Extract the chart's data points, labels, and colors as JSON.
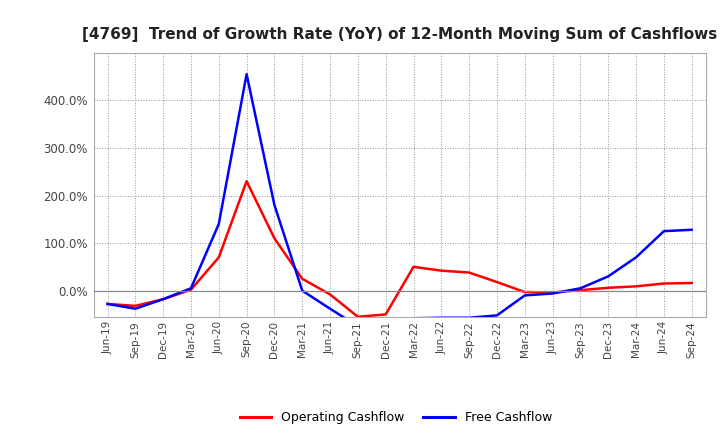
{
  "title": "[4769]  Trend of Growth Rate (YoY) of 12-Month Moving Sum of Cashflows",
  "title_fontsize": 11,
  "background_color": "#ffffff",
  "plot_bg_color": "#ffffff",
  "grid_color": "#999999",
  "x_labels": [
    "Jun-19",
    "Sep-19",
    "Dec-19",
    "Mar-20",
    "Jun-20",
    "Sep-20",
    "Dec-20",
    "Mar-21",
    "Jun-21",
    "Sep-21",
    "Dec-21",
    "Mar-22",
    "Jun-22",
    "Sep-22",
    "Dec-22",
    "Mar-23",
    "Jun-23",
    "Sep-23",
    "Dec-23",
    "Mar-24",
    "Jun-24",
    "Sep-24"
  ],
  "operating_cashflow": [
    -0.28,
    -0.32,
    -0.18,
    0.02,
    0.7,
    2.3,
    1.1,
    0.25,
    -0.08,
    -0.55,
    -0.5,
    0.5,
    0.42,
    0.38,
    0.18,
    -0.03,
    -0.04,
    0.01,
    0.06,
    0.09,
    0.15,
    0.16
  ],
  "free_cashflow": [
    -0.28,
    -0.38,
    -0.18,
    0.05,
    1.4,
    4.55,
    1.8,
    0.0,
    -0.38,
    -0.75,
    -0.62,
    -0.58,
    -0.57,
    -0.57,
    -0.52,
    -0.1,
    -0.06,
    0.05,
    0.3,
    0.7,
    1.25,
    1.28
  ],
  "operating_color": "#ff0000",
  "free_color": "#0000ff",
  "line_width": 1.8,
  "ylim_min": -0.55,
  "ylim_max": 5.0,
  "legend_labels": [
    "Operating Cashflow",
    "Free Cashflow"
  ],
  "yticks": [
    0.0,
    1.0,
    2.0,
    3.0,
    4.0
  ],
  "ytick_labels": [
    "0.0%",
    "100.0%",
    "200.0%",
    "300.0%",
    "400.0%"
  ]
}
